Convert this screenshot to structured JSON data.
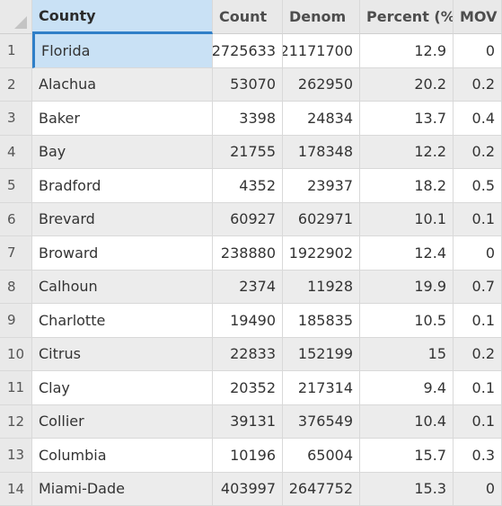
{
  "table": {
    "columns": [
      "County",
      "Count",
      "Denom",
      "Percent (%)",
      "MOV"
    ],
    "rows": [
      {
        "n": "1",
        "county": "Florida",
        "count": "2725633",
        "denom": "21171700",
        "percent": "12.9",
        "mov": "0"
      },
      {
        "n": "2",
        "county": "Alachua",
        "count": "53070",
        "denom": "262950",
        "percent": "20.2",
        "mov": "0.2"
      },
      {
        "n": "3",
        "county": "Baker",
        "count": "3398",
        "denom": "24834",
        "percent": "13.7",
        "mov": "0.4"
      },
      {
        "n": "4",
        "county": "Bay",
        "count": "21755",
        "denom": "178348",
        "percent": "12.2",
        "mov": "0.2"
      },
      {
        "n": "5",
        "county": "Bradford",
        "count": "4352",
        "denom": "23937",
        "percent": "18.2",
        "mov": "0.5"
      },
      {
        "n": "6",
        "county": "Brevard",
        "count": "60927",
        "denom": "602971",
        "percent": "10.1",
        "mov": "0.1"
      },
      {
        "n": "7",
        "county": "Broward",
        "count": "238880",
        "denom": "1922902",
        "percent": "12.4",
        "mov": "0"
      },
      {
        "n": "8",
        "county": "Calhoun",
        "count": "2374",
        "denom": "11928",
        "percent": "19.9",
        "mov": "0.7"
      },
      {
        "n": "9",
        "county": "Charlotte",
        "count": "19490",
        "denom": "185835",
        "percent": "10.5",
        "mov": "0.1"
      },
      {
        "n": "10",
        "county": "Citrus",
        "count": "22833",
        "denom": "152199",
        "percent": "15",
        "mov": "0.2"
      },
      {
        "n": "11",
        "county": "Clay",
        "count": "20352",
        "denom": "217314",
        "percent": "9.4",
        "mov": "0.1"
      },
      {
        "n": "12",
        "county": "Collier",
        "count": "39131",
        "denom": "376549",
        "percent": "10.4",
        "mov": "0.1"
      },
      {
        "n": "13",
        "county": "Columbia",
        "count": "10196",
        "denom": "65004",
        "percent": "15.7",
        "mov": "0.3"
      },
      {
        "n": "14",
        "county": "Miami-Dade",
        "count": "403997",
        "denom": "2647752",
        "percent": "15.3",
        "mov": "0"
      }
    ]
  },
  "colors": {
    "header_bg": "#e9e9e9",
    "selected_bg": "#c9e1f5",
    "accent": "#2f7fc8",
    "alt_row_bg": "#ececec"
  }
}
